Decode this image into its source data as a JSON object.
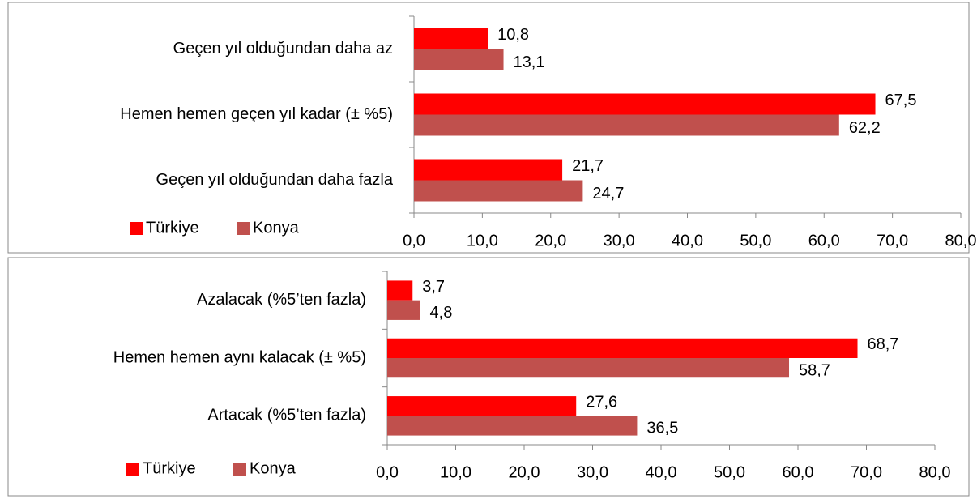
{
  "chart_data": [
    {
      "type": "bar",
      "orientation": "horizontal",
      "categories": [
        "Geçen yıl olduğundan daha az",
        "Hemen hemen geçen yıl kadar (± %5)",
        "Geçen yıl olduğundan daha fazla"
      ],
      "series": [
        {
          "name": "Türkiye",
          "color": "#ff0000",
          "values": [
            10.8,
            67.5,
            21.7
          ],
          "value_labels": [
            "10,8",
            "67,5",
            "21,7"
          ]
        },
        {
          "name": "Konya",
          "color": "#c0504d",
          "values": [
            13.1,
            62.2,
            24.7
          ],
          "value_labels": [
            "13,1",
            "62,2",
            "24,7"
          ]
        }
      ],
      "xlim": [
        0,
        80
      ],
      "xticks": [
        {
          "value": 0,
          "label": "0,0"
        },
        {
          "value": 10,
          "label": "10,0"
        },
        {
          "value": 20,
          "label": "20,0"
        },
        {
          "value": 30,
          "label": "30,0"
        },
        {
          "value": 40,
          "label": "40,0"
        },
        {
          "value": 50,
          "label": "50,0"
        },
        {
          "value": 60,
          "label": "60,0"
        },
        {
          "value": 70,
          "label": "70,0"
        },
        {
          "value": 80,
          "label": "80,0"
        }
      ],
      "legend": "bottom-left"
    },
    {
      "type": "bar",
      "orientation": "horizontal",
      "categories": [
        "Azalacak (%5’ten fazla)",
        "Hemen hemen aynı kalacak (± %5)",
        "Artacak (%5’ten fazla)"
      ],
      "series": [
        {
          "name": "Türkiye",
          "color": "#ff0000",
          "values": [
            3.7,
            68.7,
            27.6
          ],
          "value_labels": [
            "3,7",
            "68,7",
            "27,6"
          ]
        },
        {
          "name": "Konya",
          "color": "#c0504d",
          "values": [
            4.8,
            58.7,
            36.5
          ],
          "value_labels": [
            "4,8",
            "58,7",
            "36,5"
          ]
        }
      ],
      "xlim": [
        0,
        80
      ],
      "xticks": [
        {
          "value": 0,
          "label": "0,0"
        },
        {
          "value": 10,
          "label": "10,0"
        },
        {
          "value": 20,
          "label": "20,0"
        },
        {
          "value": 30,
          "label": "30,0"
        },
        {
          "value": 40,
          "label": "40,0"
        },
        {
          "value": 50,
          "label": "50,0"
        },
        {
          "value": 60,
          "label": "60,0"
        },
        {
          "value": 70,
          "label": "70,0"
        },
        {
          "value": 80,
          "label": "80,0"
        }
      ],
      "legend": "bottom-left"
    }
  ]
}
